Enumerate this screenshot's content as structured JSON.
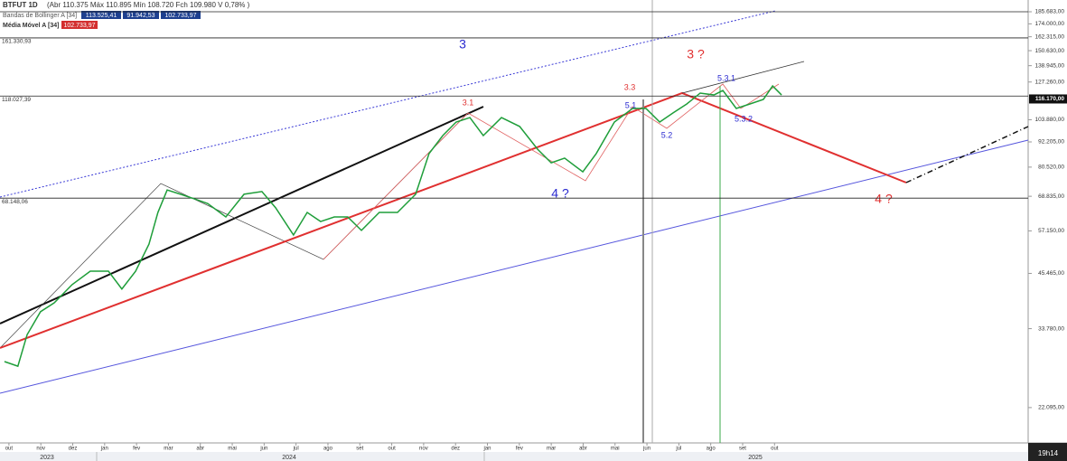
{
  "chart_data": {
    "type": "line",
    "log_scale": true,
    "header": {
      "symbol": "BTFUT 1D",
      "ohlc": "(Abr 110.375 Máx 110.895 Mín 108.720 Fch 109.980 V 0,78% )",
      "bollinger": "Bandas de Bollinger A [34]",
      "bollinger_values": [
        "113.525,41",
        "91.942,53",
        "102.733,97"
      ],
      "moving_average": "Média Móvel A [34]",
      "moving_average_value": "102.733,97"
    },
    "categories": [
      "out",
      "nov",
      "dez",
      "jan",
      "fev",
      "mar",
      "abr",
      "mai",
      "jun",
      "jul",
      "ago",
      "set",
      "out",
      "nov",
      "dez",
      "jan",
      "fev",
      "mar",
      "abr",
      "mai",
      "jun",
      "jul",
      "ago",
      "set",
      "out"
    ],
    "years": [
      "2023",
      "2024",
      "2025"
    ],
    "time": "19h14",
    "xlim": [
      -0.28,
      31.95
    ],
    "ylim": [
      18270,
      197800
    ],
    "yticks": [
      {
        "value": 185683,
        "label": "185.683,00"
      },
      {
        "value": 174000,
        "label": "174.000,00"
      },
      {
        "value": 162315,
        "label": "162.315,00"
      },
      {
        "value": 150630,
        "label": "150.630,00"
      },
      {
        "value": 138945,
        "label": "138.945,00"
      },
      {
        "value": 127260,
        "label": "127.260,00"
      },
      {
        "value": 103880,
        "label": "103.880,00"
      },
      {
        "value": 92205,
        "label": "92.205,00"
      },
      {
        "value": 80520,
        "label": "80.520,00"
      },
      {
        "value": 68835,
        "label": "68.835,00"
      },
      {
        "value": 57150,
        "label": "57.150,00"
      },
      {
        "value": 45465,
        "label": "45.465,00"
      },
      {
        "value": 33780,
        "label": "33.780,00"
      },
      {
        "value": 22095,
        "label": "22.095,00"
      }
    ],
    "current_price": {
      "value": 116170,
      "label": "116.170,00"
    },
    "levels": [
      {
        "value": 185683,
        "label": ""
      },
      {
        "value": 161330.93,
        "label": "161.330,93"
      },
      {
        "value": 118027.39,
        "label": "118.027,39"
      },
      {
        "value": 68148.06,
        "label": "68.148,06"
      }
    ],
    "annotations": [
      "3",
      "3 ?",
      "3.1",
      "3.3",
      "5.1",
      "5.3.1",
      "5.2",
      "5.3.2",
      "4 ?",
      "4 ?"
    ],
    "x": [
      -0.14,
      0.28,
      0.57,
      0.99,
      1.42,
      1.98,
      2.55,
      3.12,
      3.54,
      3.97,
      4.39,
      4.67,
      4.96,
      5.38,
      5.81,
      6.23,
      6.8,
      7.37,
      7.93,
      8.36,
      8.92,
      9.35,
      9.77,
      10.2,
      10.62,
      11.05,
      11.61,
      12.18,
      12.75,
      13.17,
      13.6,
      14.02,
      14.45,
      14.87,
      15.44,
      16.01,
      16.57,
      17.0,
      17.42,
      17.99,
      18.41,
      18.98,
      19.55,
      19.97,
      20.4,
      20.82,
      21.25,
      21.67,
      22.1,
      22.38,
      22.8,
      23.23,
      23.65,
      23.94,
      24.22
    ],
    "series": [
      {
        "name": "BTFUT",
        "color": "#1f9e3a",
        "values": [
          28300,
          27600,
          32700,
          37000,
          38800,
          42800,
          46000,
          46000,
          41800,
          46000,
          53200,
          63100,
          71200,
          69600,
          67900,
          66200,
          61600,
          69600,
          70600,
          64700,
          55900,
          63100,
          60100,
          61600,
          61600,
          57300,
          63100,
          63100,
          69600,
          86600,
          95400,
          102600,
          105100,
          95400,
          105100,
          100200,
          88700,
          82400,
          84500,
          78500,
          86600,
          102600,
          110400,
          110400,
          102600,
          107800,
          113100,
          119900,
          118700,
          121600,
          110400,
          113100,
          115900,
          124600,
          118700
        ]
      }
    ]
  }
}
